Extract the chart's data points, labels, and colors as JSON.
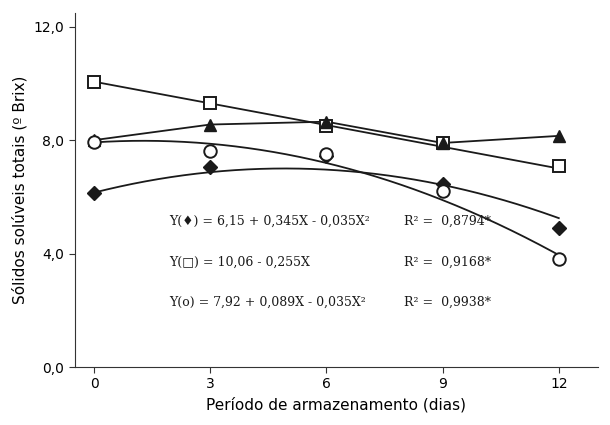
{
  "x_points": [
    0,
    3,
    6,
    9,
    12
  ],
  "series": {
    "diamond": {
      "y": [
        6.15,
        7.05,
        7.45,
        6.45,
        4.9
      ],
      "marker": "D",
      "fillstyle": "full",
      "markersize": 7
    },
    "square": {
      "y": [
        10.06,
        9.3,
        8.5,
        7.9,
        7.1
      ],
      "marker": "s",
      "fillstyle": "none",
      "markersize": 9
    },
    "triangle": {
      "y": [
        8.0,
        8.55,
        8.65,
        7.9,
        8.15
      ],
      "marker": "^",
      "fillstyle": "full",
      "markersize": 9
    },
    "circle": {
      "y": [
        7.92,
        7.6,
        7.5,
        6.2,
        3.8
      ],
      "marker": "o",
      "fillstyle": "none",
      "markersize": 9
    }
  },
  "equations": {
    "diamond": {
      "a": 6.15,
      "b": 0.345,
      "c": -0.035
    },
    "square": {
      "a": 10.06,
      "b": -0.255,
      "c": 0.0
    },
    "circle": {
      "a": 7.92,
      "b": 0.089,
      "c": -0.035
    }
  },
  "eq_text_left": [
    "Y(♦) = 6,15 + 0,345X - 0,035X²",
    "Y(□) = 10,06 - 0,255X",
    "Y(o) = 7,92 + 0,089X - 0,035X²"
  ],
  "eq_text_right": [
    "R² =  0,8794*",
    "R² =  0,9168*",
    "R² =  0,9938*"
  ],
  "xlabel": "Período de armazenamento (dias)",
  "ylabel": "Sólidos solúveis totais (º Brix)",
  "xlim": [
    -0.5,
    13.0
  ],
  "ylim": [
    0.0,
    12.5
  ],
  "yticks": [
    0.0,
    4.0,
    8.0,
    12.0
  ],
  "xticks": [
    0,
    3,
    6,
    9,
    12
  ],
  "background_color": "#ffffff",
  "line_color": "#1a1a1a",
  "linewidth": 1.3,
  "fontsize_labels": 11,
  "fontsize_ticks": 10,
  "fontsize_annotation": 9.0
}
